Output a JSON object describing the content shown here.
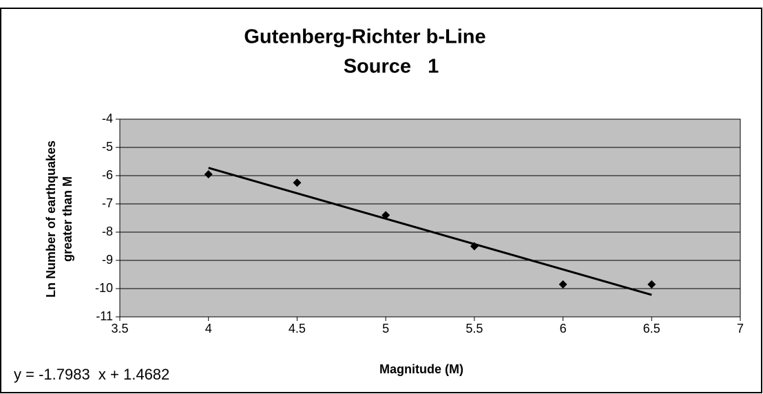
{
  "chart_data": {
    "type": "scatter",
    "title": [
      "Gutenberg-Richter b-Line",
      "Source   1"
    ],
    "xlabel": "Magnitude (M)",
    "ylabel": [
      "Ln Number of earthquakes",
      "greater than M"
    ],
    "x": [
      4,
      4.5,
      5,
      5.5,
      6,
      6.5
    ],
    "values": [
      -5.95,
      -6.25,
      -7.4,
      -8.5,
      -9.85,
      -9.85
    ],
    "color": "#000000",
    "trendline": {
      "label": "y = -1.7983  x + 1.4682",
      "slope": -1.7983,
      "intercept": 1.4682,
      "x": [
        4,
        6.5
      ]
    },
    "xlim": [
      3.5,
      7
    ],
    "xticks": [
      3.5,
      4,
      4.5,
      5,
      5.5,
      6,
      6.5,
      7
    ],
    "ylim": [
      -11,
      -4
    ],
    "yticks": [
      -4,
      -5,
      -6,
      -7,
      -8,
      -9,
      -10,
      -11
    ],
    "grid": true,
    "plot_background": "#c0c0c0"
  }
}
